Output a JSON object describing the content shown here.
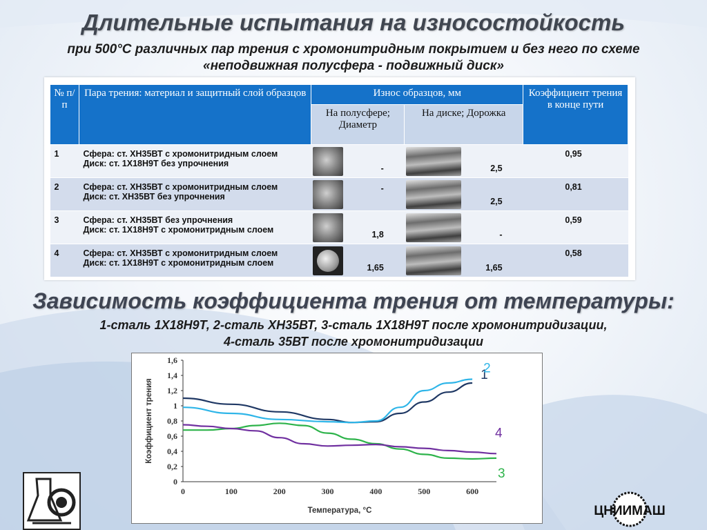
{
  "header": {
    "title": "Длительные испытания на износостойкость",
    "subtitle_line1": "при 500°С различных пар трения с хромонитридным покрытием и без него по схеме",
    "subtitle_line2": "«неподвижная полусфера - подвижный диск»"
  },
  "table": {
    "col_num": "№ п/ п",
    "col_pair": "Пара трения: материал и защитный слой образцов",
    "col_wear": "Износ образцов, мм",
    "col_wear_sphere": "На полусфере; Диаметр",
    "col_wear_disk": "На диске; Дорожка",
    "col_coef": "Коэффициент трения в конце пути",
    "rows": [
      {
        "n": "1",
        "l1": "Сфера: ст. ХН35ВТ с хромонитридным слоем",
        "l2": "Диск: ст. 1Х18Н9Т без упрочнения",
        "sphere": "-",
        "disk": "2,5",
        "coef": "0,95"
      },
      {
        "n": "2",
        "l1": "Сфера: ст. ХН35ВТ с хромонитридным слоем",
        "l2": "Диск: ст. ХН35ВТ без упрочнения",
        "sphere": "-",
        "disk": "2,5",
        "coef": "0,81"
      },
      {
        "n": "3",
        "l1": "Сфера: ст. ХН35ВТ без упрочнения",
        "l2": "Диск: ст. 1Х18Н9Т с хромонитридным  слоем",
        "sphere": "1,8",
        "disk": "-",
        "coef": "0,59"
      },
      {
        "n": "4",
        "l1": "Сфера: ст. ХН35ВТ с хромонитридным слоем",
        "l2": "Диск: ст. 1Х18Н9Т с хромонитридным  слоем",
        "sphere": "1,65",
        "disk": "1,65",
        "coef": "0,58"
      }
    ]
  },
  "section2": {
    "title": "Зависимость коэффициента трения от температуры:",
    "sub_line1": "1-сталь 1Х18Н9Т, 2-сталь ХН35ВТ, 3-сталь 1Х18Н9Т после хромонитридизации,",
    "sub_line2": "4-сталь 35ВТ после хромонитридизации"
  },
  "chart_data": {
    "type": "line",
    "title": "",
    "xlabel": "Температура, °С",
    "ylabel": "Коэффициент трения",
    "xlim": [
      0,
      650
    ],
    "ylim": [
      0,
      1.6
    ],
    "xticks": [
      "0",
      "100",
      "200",
      "300",
      "400",
      "500",
      "600"
    ],
    "yticks": [
      "0",
      "0,2",
      "0,4",
      "0,6",
      "0,8",
      "1",
      "1,2",
      "1,4",
      "1,6"
    ],
    "grid": false,
    "series": [
      {
        "name": "1",
        "color": "#1f3864",
        "x": [
          0,
          100,
          200,
          300,
          350,
          400,
          450,
          500,
          550,
          600
        ],
        "y": [
          1.1,
          1.02,
          0.92,
          0.82,
          0.78,
          0.79,
          0.9,
          1.05,
          1.18,
          1.3
        ]
      },
      {
        "name": "2",
        "color": "#2eb5e8",
        "x": [
          0,
          100,
          200,
          300,
          350,
          400,
          450,
          500,
          550,
          600
        ],
        "y": [
          0.98,
          0.9,
          0.82,
          0.79,
          0.78,
          0.8,
          0.98,
          1.2,
          1.3,
          1.35
        ]
      },
      {
        "name": "3",
        "color": "#2db34a",
        "x": [
          0,
          50,
          100,
          150,
          200,
          250,
          300,
          350,
          400,
          450,
          500,
          550,
          600,
          650
        ],
        "y": [
          0.68,
          0.68,
          0.7,
          0.74,
          0.77,
          0.74,
          0.64,
          0.56,
          0.5,
          0.43,
          0.36,
          0.31,
          0.3,
          0.31
        ]
      },
      {
        "name": "4",
        "color": "#7030a0",
        "x": [
          0,
          50,
          100,
          150,
          200,
          250,
          300,
          350,
          400,
          450,
          500,
          550,
          600,
          650
        ],
        "y": [
          0.75,
          0.73,
          0.7,
          0.67,
          0.58,
          0.5,
          0.47,
          0.48,
          0.49,
          0.46,
          0.44,
          0.41,
          0.39,
          0.37
        ]
      }
    ]
  },
  "logos": {
    "right_text": "ЦНИИМАШ"
  }
}
